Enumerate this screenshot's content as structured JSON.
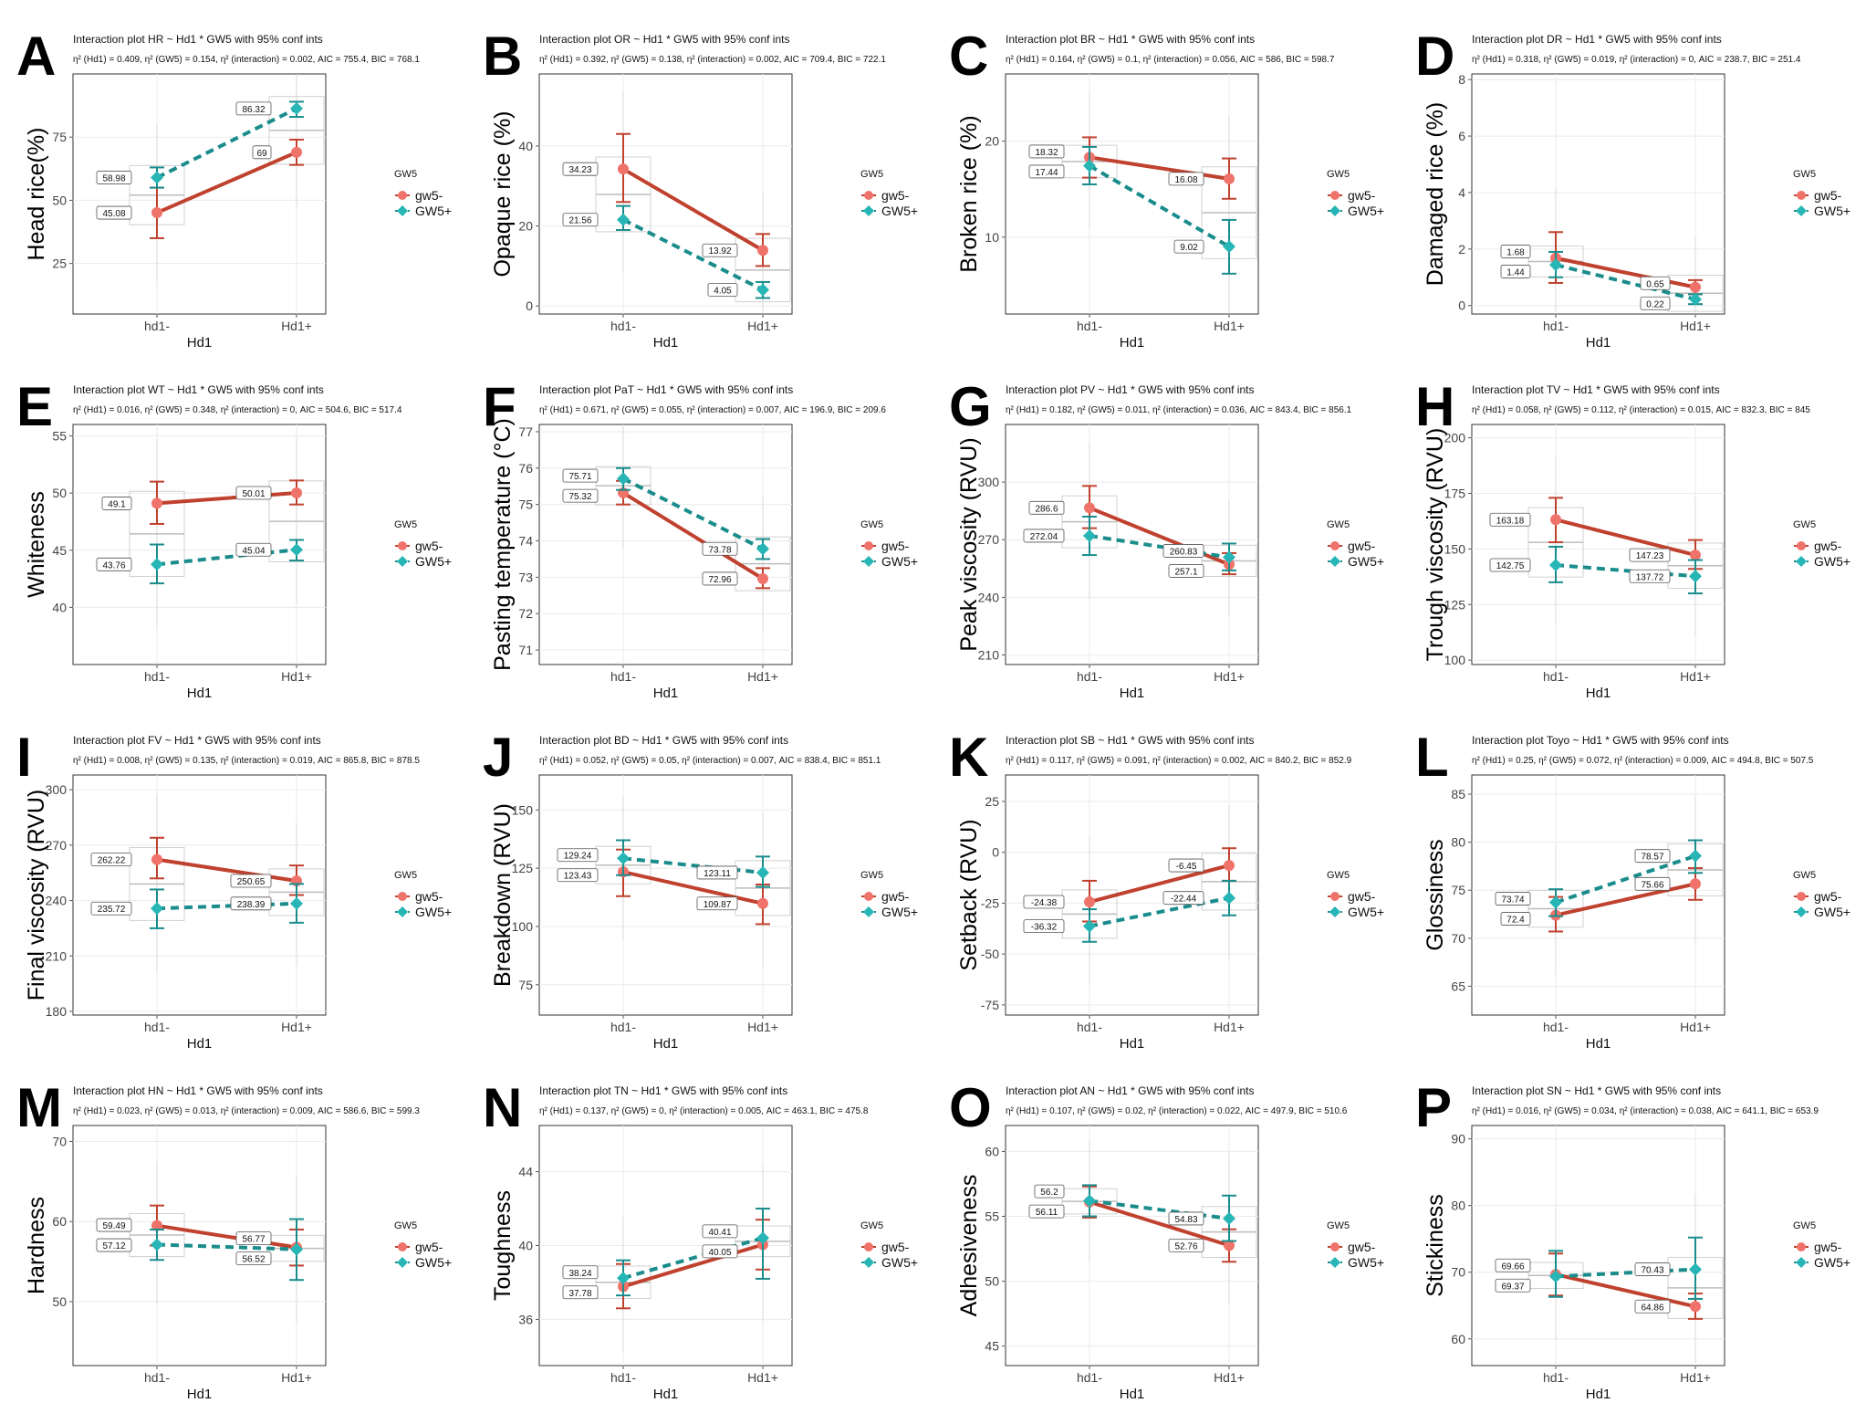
{
  "legend": {
    "title": "GW5",
    "entries": [
      "gw5-",
      "GW5+"
    ]
  },
  "colors": {
    "gw5_minus": "#c0412e",
    "gw5_minus_point": "#f0736b",
    "gw5_plus": "#1a8c8c",
    "gw5_plus_point": "#27b5b5",
    "grid": "#ebebeb",
    "box": "#d0d0d0"
  },
  "chart_data": [
    {
      "type": "line",
      "letter": "A",
      "title": "Interaction plot  HR ~ Hd1 * GW5 with 95% conf ints",
      "subtitle": "η² (Hd1) = 0.409, η² (GW5) = 0.154, η² (interaction) = 0.002, AIC = 755.4, BIC = 768.1",
      "xlabel": "Hd1",
      "ylabel": "Head rice(%)",
      "categories": [
        "hd1-",
        "Hd1+"
      ],
      "yticks": [
        25,
        50,
        75
      ],
      "ylim": [
        5,
        100
      ],
      "series": [
        {
          "name": "gw5-",
          "values": [
            45.08,
            69
          ],
          "labels": [
            "45.08",
            "69"
          ],
          "ci": [
            [
              35,
              55
            ],
            [
              64,
              74
            ]
          ]
        },
        {
          "name": "GW5+",
          "values": [
            58.98,
            86.32
          ],
          "labels": [
            "58.98",
            "86.32"
          ],
          "ci": [
            [
              55,
              63
            ],
            [
              83,
              89
            ]
          ]
        }
      ]
    },
    {
      "type": "line",
      "letter": "B",
      "title": "Interaction plot  OR ~ Hd1 * GW5 with 95% conf ints",
      "subtitle": "η² (Hd1) = 0.392, η² (GW5) = 0.138, η² (interaction) = 0.002, AIC = 709.4, BIC = 722.1",
      "xlabel": "Hd1",
      "ylabel": "Opaque rice (%)",
      "categories": [
        "hd1-",
        "Hd1+"
      ],
      "yticks": [
        0,
        20,
        40
      ],
      "ylim": [
        -2,
        58
      ],
      "series": [
        {
          "name": "gw5-",
          "values": [
            34.23,
            13.92
          ],
          "labels": [
            "34.23",
            "13.92"
          ],
          "ci": [
            [
              26,
              43
            ],
            [
              10,
              18
            ]
          ]
        },
        {
          "name": "GW5+",
          "values": [
            21.56,
            4.05
          ],
          "labels": [
            "21.56",
            "4.05"
          ],
          "ci": [
            [
              19,
              25
            ],
            [
              2,
              6
            ]
          ]
        }
      ]
    },
    {
      "type": "line",
      "letter": "C",
      "title": "Interaction plot  BR ~ Hd1 * GW5 with 95% conf ints",
      "subtitle": "η² (Hd1) = 0.164, η² (GW5) = 0.1, η² (interaction) = 0.056, AIC = 586, BIC = 598.7",
      "xlabel": "Hd1",
      "ylabel": "Broken rice (%)",
      "categories": [
        "hd1-",
        "Hd1+"
      ],
      "yticks": [
        10,
        20
      ],
      "ylim": [
        2,
        27
      ],
      "series": [
        {
          "name": "gw5-",
          "values": [
            18.32,
            16.08
          ],
          "labels": [
            "18.32",
            "16.08"
          ],
          "ci": [
            [
              16.2,
              20.4
            ],
            [
              14,
              18.2
            ]
          ]
        },
        {
          "name": "GW5+",
          "values": [
            17.44,
            9.02
          ],
          "labels": [
            "17.44",
            "9.02"
          ],
          "ci": [
            [
              15.5,
              19.4
            ],
            [
              6.2,
              11.8
            ]
          ]
        }
      ]
    },
    {
      "type": "line",
      "letter": "D",
      "title": "Interaction plot  DR ~ Hd1 * GW5 with 95% conf ints",
      "subtitle": "η² (Hd1) = 0.318, η² (GW5) = 0.019, η² (interaction) = 0, AIC = 238.7, BIC = 251.4",
      "xlabel": "Hd1",
      "ylabel": "Damaged rice (%)",
      "categories": [
        "hd1-",
        "Hd1+"
      ],
      "yticks": [
        0,
        2,
        4,
        6,
        8
      ],
      "ylim": [
        -0.3,
        8.2
      ],
      "series": [
        {
          "name": "gw5-",
          "values": [
            1.68,
            0.65
          ],
          "labels": [
            "1.68",
            "0.65"
          ],
          "ci": [
            [
              0.8,
              2.6
            ],
            [
              0.4,
              0.9
            ]
          ]
        },
        {
          "name": "GW5+",
          "values": [
            1.44,
            0.22
          ],
          "labels": [
            "1.44",
            "0.22"
          ],
          "ci": [
            [
              1,
              1.9
            ],
            [
              0.05,
              0.4
            ]
          ]
        }
      ]
    },
    {
      "type": "line",
      "letter": "E",
      "title": "Interaction plot  WT ~ Hd1 * GW5 with 95% conf ints",
      "subtitle": "η² (Hd1) = 0.016, η² (GW5) = 0.348, η² (interaction) = 0, AIC = 504.6, BIC = 517.4",
      "xlabel": "Hd1",
      "ylabel": "Whiteness",
      "categories": [
        "hd1-",
        "Hd1+"
      ],
      "yticks": [
        40,
        45,
        50,
        55
      ],
      "ylim": [
        35,
        56
      ],
      "series": [
        {
          "name": "gw5-",
          "values": [
            49.1,
            50.01
          ],
          "labels": [
            "49.1",
            "50.01"
          ],
          "ci": [
            [
              47.3,
              51
            ],
            [
              49,
              51.1
            ]
          ]
        },
        {
          "name": "GW5+",
          "values": [
            43.76,
            45.04
          ],
          "labels": [
            "43.76",
            "45.04"
          ],
          "ci": [
            [
              42.1,
              45.5
            ],
            [
              44.1,
              45.9
            ]
          ]
        }
      ]
    },
    {
      "type": "line",
      "letter": "F",
      "title": "Interaction plot  PaT ~ Hd1 * GW5 with 95% conf ints",
      "subtitle": "η² (Hd1) = 0.671, η² (GW5) = 0.055, η² (interaction) = 0.007, AIC = 196.9, BIC = 209.6",
      "xlabel": "Hd1",
      "ylabel": "Pasting temperature (°C)",
      "categories": [
        "hd1-",
        "Hd1+"
      ],
      "yticks": [
        71,
        72,
        73,
        74,
        75,
        76,
        77
      ],
      "ylim": [
        70.6,
        77.2
      ],
      "series": [
        {
          "name": "gw5-",
          "values": [
            75.32,
            72.96
          ],
          "labels": [
            "75.32",
            "72.96"
          ],
          "ci": [
            [
              75,
              75.65
            ],
            [
              72.7,
              73.25
            ]
          ]
        },
        {
          "name": "GW5+",
          "values": [
            75.71,
            73.78
          ],
          "labels": [
            "75.71",
            "73.78"
          ],
          "ci": [
            [
              75.4,
              76
            ],
            [
              73.5,
              74.05
            ]
          ]
        }
      ]
    },
    {
      "type": "line",
      "letter": "G",
      "title": "Interaction plot  PV ~ Hd1 * GW5 with 95% conf ints",
      "subtitle": "η² (Hd1) = 0.182, η² (GW5) = 0.011, η² (interaction) = 0.036, AIC = 843.4, BIC = 856.1",
      "xlabel": "Hd1",
      "ylabel": "Peak viscosity (RVU)",
      "categories": [
        "hd1-",
        "Hd1+"
      ],
      "yticks": [
        210,
        240,
        270,
        300
      ],
      "ylim": [
        205,
        330
      ],
      "series": [
        {
          "name": "gw5-",
          "values": [
            286.6,
            257.1
          ],
          "labels": [
            "286.6",
            "257.1"
          ],
          "ci": [
            [
              276,
              298
            ],
            [
              252,
              263
            ]
          ]
        },
        {
          "name": "GW5+",
          "values": [
            272.04,
            260.83
          ],
          "labels": [
            "272.04",
            "260.83"
          ],
          "ci": [
            [
              262,
              282
            ],
            [
              254,
              268
            ]
          ]
        }
      ]
    },
    {
      "type": "line",
      "letter": "H",
      "title": "Interaction plot  TV ~ Hd1 * GW5 with 95% conf ints",
      "subtitle": "η² (Hd1) = 0.058, η² (GW5) = 0.112, η² (interaction) = 0.015, AIC = 832.3, BIC = 845",
      "xlabel": "Hd1",
      "ylabel": "Trough viscosity (RVU)",
      "categories": [
        "hd1-",
        "Hd1+"
      ],
      "yticks": [
        100,
        125,
        150,
        175,
        200
      ],
      "ylim": [
        98,
        206
      ],
      "series": [
        {
          "name": "gw5-",
          "values": [
            163.18,
            147.23
          ],
          "labels": [
            "163.18",
            "147.23"
          ],
          "ci": [
            [
              153,
              173
            ],
            [
              141,
              154
            ]
          ]
        },
        {
          "name": "GW5+",
          "values": [
            142.75,
            137.72
          ],
          "labels": [
            "142.75",
            "137.72"
          ],
          "ci": [
            [
              135,
              151
            ],
            [
              130,
              145
            ]
          ]
        }
      ]
    },
    {
      "type": "line",
      "letter": "I",
      "title": "Interaction plot  FV ~ Hd1 * GW5 with 95% conf ints",
      "subtitle": "η² (Hd1) = 0.008, η² (GW5) = 0.135, η² (interaction) = 0.019, AIC = 865.8, BIC = 878.5",
      "xlabel": "Hd1",
      "ylabel": "Final viscosity (RVU)",
      "categories": [
        "hd1-",
        "Hd1+"
      ],
      "yticks": [
        180,
        210,
        240,
        270,
        300
      ],
      "ylim": [
        178,
        308
      ],
      "series": [
        {
          "name": "gw5-",
          "values": [
            262.22,
            250.65
          ],
          "labels": [
            "262.22",
            "250.65"
          ],
          "ci": [
            [
              252,
              274
            ],
            [
              243,
              259
            ]
          ]
        },
        {
          "name": "GW5+",
          "values": [
            235.72,
            238.39
          ],
          "labels": [
            "235.72",
            "238.39"
          ],
          "ci": [
            [
              225,
              246
            ],
            [
              228,
              249
            ]
          ]
        }
      ]
    },
    {
      "type": "line",
      "letter": "J",
      "title": "Interaction plot  BD ~ Hd1 * GW5 with 95% conf ints",
      "subtitle": "η² (Hd1) = 0.052, η² (GW5) = 0.05, η² (interaction) = 0.007, AIC = 838.4, BIC = 851.1",
      "xlabel": "Hd1",
      "ylabel": "Breakdown (RVU)",
      "categories": [
        "hd1-",
        "Hd1+"
      ],
      "yticks": [
        75,
        100,
        125,
        150
      ],
      "ylim": [
        62,
        165
      ],
      "series": [
        {
          "name": "gw5-",
          "values": [
            123.43,
            109.87
          ],
          "labels": [
            "123.43",
            "109.87"
          ],
          "ci": [
            [
              113,
              133
            ],
            [
              101,
              118
            ]
          ]
        },
        {
          "name": "GW5+",
          "values": [
            129.24,
            123.11
          ],
          "labels": [
            "129.24",
            "123.11"
          ],
          "ci": [
            [
              122,
              137
            ],
            [
              117,
              130
            ]
          ]
        }
      ]
    },
    {
      "type": "line",
      "letter": "K",
      "title": "Interaction plot  SB ~ Hd1 * GW5 with 95% conf ints",
      "subtitle": "η² (Hd1) = 0.117, η² (GW5) = 0.091, η² (interaction) = 0.002, AIC = 840.2, BIC = 852.9",
      "xlabel": "Hd1",
      "ylabel": "Setback (RVU)",
      "categories": [
        "hd1-",
        "Hd1+"
      ],
      "yticks": [
        -75,
        -50,
        -25,
        0,
        25
      ],
      "ylim": [
        -80,
        38
      ],
      "series": [
        {
          "name": "gw5-",
          "values": [
            -24.38,
            -6.45
          ],
          "labels": [
            "-24.38",
            "-6.45"
          ],
          "ci": [
            [
              -34,
              -14
            ],
            [
              -14,
              2
            ]
          ]
        },
        {
          "name": "GW5+",
          "values": [
            -36.32,
            -22.44
          ],
          "labels": [
            "-36.32",
            "-22.44"
          ],
          "ci": [
            [
              -44,
              -28
            ],
            [
              -31,
              -14
            ]
          ]
        }
      ]
    },
    {
      "type": "line",
      "letter": "L",
      "title": "Interaction plot  Toyo ~ Hd1 * GW5 with 95% conf ints",
      "subtitle": "η² (Hd1) = 0.25, η² (GW5) = 0.072, η² (interaction) = 0.009, AIC = 494.8, BIC = 507.5",
      "xlabel": "Hd1",
      "ylabel": "Glossiness",
      "categories": [
        "hd1-",
        "Hd1+"
      ],
      "yticks": [
        65,
        70,
        75,
        80,
        85
      ],
      "ylim": [
        62,
        87
      ],
      "series": [
        {
          "name": "gw5-",
          "values": [
            72.4,
            75.66
          ],
          "labels": [
            "72.4",
            "75.66"
          ],
          "ci": [
            [
              70.7,
              74.3
            ],
            [
              74,
              77.3
            ]
          ]
        },
        {
          "name": "GW5+",
          "values": [
            73.74,
            78.57
          ],
          "labels": [
            "73.74",
            "78.57"
          ],
          "ci": [
            [
              72.3,
              75.1
            ],
            [
              76.8,
              80.2
            ]
          ]
        }
      ]
    },
    {
      "type": "line",
      "letter": "M",
      "title": "Interaction plot  HN ~ Hd1 * GW5 with 95% conf ints",
      "subtitle": "η² (Hd1) = 0.023, η² (GW5) = 0.013, η² (interaction) = 0.009, AIC = 586.6, BIC = 599.3",
      "xlabel": "Hd1",
      "ylabel": "Hardness",
      "categories": [
        "hd1-",
        "Hd1+"
      ],
      "yticks": [
        50,
        60,
        70
      ],
      "ylim": [
        42,
        72
      ],
      "series": [
        {
          "name": "gw5-",
          "values": [
            59.49,
            56.77
          ],
          "labels": [
            "59.49",
            "56.77"
          ],
          "ci": [
            [
              57,
              62
            ],
            [
              54.5,
              59
            ]
          ]
        },
        {
          "name": "GW5+",
          "values": [
            57.12,
            56.52
          ],
          "labels": [
            "57.12",
            "56.52"
          ],
          "ci": [
            [
              55.2,
              59
            ],
            [
              52.7,
              60.3
            ]
          ]
        }
      ]
    },
    {
      "type": "line",
      "letter": "N",
      "title": "Interaction plot  TN ~ Hd1 * GW5 with 95% conf ints",
      "subtitle": "η² (Hd1) = 0.137, η² (GW5) = 0, η² (interaction) = 0.005, AIC = 463.1, BIC = 475.8",
      "xlabel": "Hd1",
      "ylabel": "Toughness",
      "categories": [
        "hd1-",
        "Hd1+"
      ],
      "yticks": [
        36,
        40,
        44
      ],
      "ylim": [
        33.5,
        46.5
      ],
      "series": [
        {
          "name": "gw5-",
          "values": [
            37.78,
            40.05
          ],
          "labels": [
            "37.78",
            "40.05"
          ],
          "ci": [
            [
              36.6,
              39
            ],
            [
              38.7,
              41.4
            ]
          ]
        },
        {
          "name": "GW5+",
          "values": [
            38.24,
            40.41
          ],
          "labels": [
            "38.24",
            "40.41"
          ],
          "ci": [
            [
              37.3,
              39.2
            ],
            [
              38.2,
              42
            ]
          ]
        }
      ]
    },
    {
      "type": "line",
      "letter": "O",
      "title": "Interaction plot  AN ~ Hd1 * GW5 with 95% conf ints",
      "subtitle": "η² (Hd1) = 0.107, η² (GW5) = 0.02, η² (interaction) = 0.022, AIC = 497.9, BIC = 510.6",
      "xlabel": "Hd1",
      "ylabel": "Adhesiveness",
      "categories": [
        "hd1-",
        "Hd1+"
      ],
      "yticks": [
        45,
        50,
        55,
        60
      ],
      "ylim": [
        43.5,
        62
      ],
      "series": [
        {
          "name": "gw5-",
          "values": [
            56.11,
            52.76
          ],
          "labels": [
            "56.11",
            "52.76"
          ],
          "ci": [
            [
              54.9,
              57.3
            ],
            [
              51.5,
              54
            ]
          ]
        },
        {
          "name": "GW5+",
          "values": [
            56.2,
            54.83
          ],
          "labels": [
            "56.2",
            "54.83"
          ],
          "ci": [
            [
              55,
              57.4
            ],
            [
              53.1,
              56.6
            ]
          ]
        }
      ]
    },
    {
      "type": "line",
      "letter": "P",
      "title": "Interaction plot  SN ~ Hd1 * GW5 with 95% conf ints",
      "subtitle": "η² (Hd1) = 0.016, η² (GW5) = 0.034, η² (interaction) = 0.038, AIC = 641.1, BIC = 653.9",
      "xlabel": "Hd1",
      "ylabel": "Stickiness",
      "categories": [
        "hd1-",
        "Hd1+"
      ],
      "yticks": [
        60,
        70,
        80,
        90
      ],
      "ylim": [
        56,
        92
      ],
      "series": [
        {
          "name": "gw5-",
          "values": [
            69.66,
            64.86
          ],
          "labels": [
            "69.66",
            "64.86"
          ],
          "ci": [
            [
              66.5,
              72.8
            ],
            [
              63,
              66.8
            ]
          ]
        },
        {
          "name": "GW5+",
          "values": [
            69.37,
            70.43
          ],
          "labels": [
            "69.37",
            "70.43"
          ],
          "ci": [
            [
              66.3,
              73.2
            ],
            [
              66,
              75.2
            ]
          ]
        }
      ]
    }
  ]
}
